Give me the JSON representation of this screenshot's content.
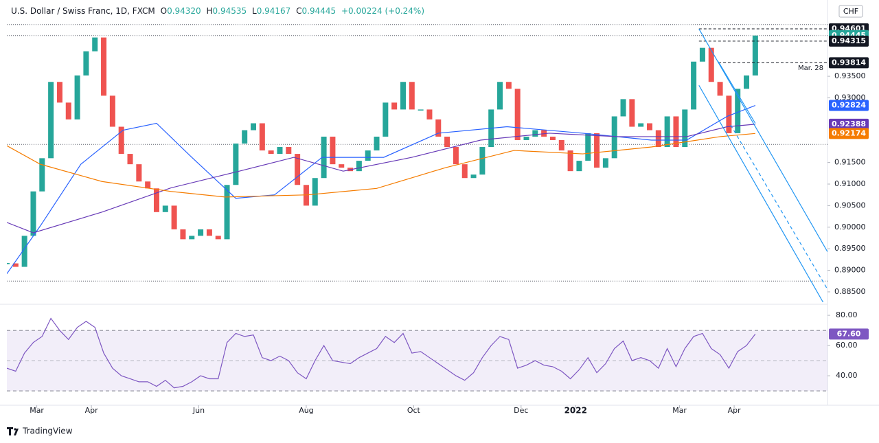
{
  "header": {
    "title": "U.S. Dollar / Swiss Franc, 1D, FXCM",
    "ohlc": [
      {
        "label": "O",
        "value": "0.94320"
      },
      {
        "label": "H",
        "value": "0.94535"
      },
      {
        "label": "L",
        "value": "0.94167"
      },
      {
        "label": "C",
        "value": "0.94445"
      }
    ],
    "change": "+0.00224 (+0.24%)",
    "currency": "CHF",
    "brand": "TradingView"
  },
  "chart_data": {
    "type": "candlestick",
    "x": [
      0,
      5,
      10,
      15,
      20,
      25,
      30,
      35,
      40,
      45,
      50,
      55,
      60,
      65,
      70,
      75,
      80,
      85,
      90,
      95,
      100,
      105,
      110,
      115,
      120,
      125,
      130,
      135,
      140,
      145,
      150,
      155,
      160,
      165,
      170,
      175,
      180,
      185,
      190,
      195,
      200,
      205,
      210,
      215,
      220,
      225,
      230,
      235,
      240,
      245,
      250,
      255,
      260,
      265,
      270,
      275,
      280,
      285,
      290,
      295,
      300,
      305,
      310,
      315,
      320,
      325,
      330,
      335,
      340,
      345,
      350,
      355,
      360,
      365,
      370,
      375,
      380,
      385,
      390,
      395,
      400,
      405,
      410,
      415,
      420,
      425
    ],
    "close": [
      0.8916,
      0.8908,
      0.898,
      0.9083,
      0.916,
      0.9337,
      0.9289,
      0.925,
      0.9352,
      0.9408,
      0.944,
      0.9305,
      0.9233,
      0.917,
      0.9146,
      0.9106,
      0.909,
      0.9035,
      0.905,
      0.8995,
      0.8972,
      0.898,
      0.8995,
      0.898,
      0.8972,
      0.9098,
      0.9194,
      0.9225,
      0.9241,
      0.9178,
      0.917,
      0.9186,
      0.917,
      0.9098,
      0.905,
      0.9114,
      0.921,
      0.9146,
      0.9138,
      0.913,
      0.9154,
      0.9178,
      0.921,
      0.9289,
      0.9273,
      0.9337,
      0.9273,
      0.9273,
      0.925,
      0.921,
      0.9186,
      0.9146,
      0.9114,
      0.9122,
      0.9186,
      0.9273,
      0.9337,
      0.9321,
      0.9202,
      0.921,
      0.9225,
      0.921,
      0.9202,
      0.9178,
      0.913,
      0.9154,
      0.9218,
      0.9138,
      0.916,
      0.9257,
      0.9297,
      0.9233,
      0.9241,
      0.9225,
      0.9186,
      0.9257,
      0.9186,
      0.9273,
      0.9384,
      0.9416,
      0.9337,
      0.9305,
      0.9218,
      0.9321,
      0.9352,
      0.94445
    ],
    "up_color": "#26a69a",
    "down_color": "#ef5350",
    "xlim": [
      0,
      466
    ],
    "xticks": [
      {
        "value": 17,
        "label": "Mar"
      },
      {
        "value": 48,
        "label": "Apr"
      },
      {
        "value": 109,
        "label": "Jun"
      },
      {
        "value": 170,
        "label": "Aug"
      },
      {
        "value": 231,
        "label": "Oct"
      },
      {
        "value": 292,
        "label": "Dec"
      },
      {
        "value": 323,
        "label": "2022"
      },
      {
        "value": 382,
        "label": "Mar"
      },
      {
        "value": 413,
        "label": "Apr"
      }
    ],
    "ylim": [
      0.8826,
      0.9519
    ],
    "yticks": [
      {
        "value": 0.935,
        "label": "0.93500"
      },
      {
        "value": 0.93,
        "label": "0.93000"
      },
      {
        "value": 0.915,
        "label": "0.91500"
      },
      {
        "value": 0.91,
        "label": "0.91000"
      },
      {
        "value": 0.905,
        "label": "0.90500"
      },
      {
        "value": 0.9,
        "label": "0.90000"
      },
      {
        "value": 0.895,
        "label": "0.89500"
      },
      {
        "value": 0.89,
        "label": "0.89000"
      },
      {
        "value": 0.885,
        "label": "0.88500"
      }
    ],
    "moving_averages": [
      {
        "color": "#2962ff",
        "x": [
          0,
          19,
          42,
          66,
          85,
          105,
          130,
          152,
          179,
          214,
          245,
          284,
          327,
          366,
          386,
          409,
          425
        ],
        "values": [
          0.8892,
          0.9003,
          0.9146,
          0.9225,
          0.9241,
          0.9162,
          0.9067,
          0.9075,
          0.9162,
          0.9162,
          0.9218,
          0.9233,
          0.9218,
          0.9202,
          0.9202,
          0.9257,
          0.92824
        ]
      },
      {
        "color": "#673ab7",
        "x": [
          0,
          15,
          54,
          93,
          132,
          163,
          191,
          230,
          269,
          308,
          347,
          386,
          409,
          425
        ],
        "values": [
          0.9011,
          0.8987,
          0.9035,
          0.9091,
          0.913,
          0.9162,
          0.913,
          0.9162,
          0.9202,
          0.9218,
          0.921,
          0.921,
          0.9233,
          0.92388
        ]
      },
      {
        "color": "#f57c00",
        "x": [
          0,
          19,
          54,
          93,
          124,
          171,
          210,
          249,
          288,
          327,
          366,
          405,
          425
        ],
        "values": [
          0.9189,
          0.9146,
          0.9106,
          0.9083,
          0.907,
          0.9075,
          0.909,
          0.9138,
          0.9178,
          0.917,
          0.9186,
          0.921,
          0.92174
        ]
      }
    ],
    "reference_lines": [
      0.947,
      0.94445,
      0.9192,
      0.8875
    ],
    "levels": [
      {
        "value": 0.94601,
        "x": 393
      },
      {
        "value": 0.94315,
        "x": 393
      },
      {
        "value": 0.93814,
        "x": 404
      }
    ],
    "trendlines": [
      {
        "x": [
          393,
          466
        ],
        "y": [
          0.946,
          0.8943
        ],
        "dashed": false
      },
      {
        "x": [
          393,
          466
        ],
        "y": [
          0.9329,
          0.8808
        ],
        "dashed": false
      },
      {
        "x": [
          404,
          425
        ],
        "y": [
          0.9384,
          0.9241
        ],
        "dashed": false
      },
      {
        "x": [
          411,
          466
        ],
        "y": [
          0.9237,
          0.8856
        ],
        "dashed": true
      }
    ],
    "annotation": "Mar. 28",
    "price_labels": [
      {
        "value": 0.94601,
        "label": "0.94601",
        "color": "#131722",
        "pane": "price"
      },
      {
        "value": 0.94445,
        "label": "0.94445",
        "color": "#26a69a",
        "pane": "price"
      },
      {
        "value": 0.94315,
        "label": "0.94315",
        "color": "#131722",
        "pane": "price"
      },
      {
        "value": 0.93814,
        "label": "0.93814",
        "color": "#131722",
        "pane": "price"
      },
      {
        "value": 0.92824,
        "label": "0.92824",
        "color": "#2962ff",
        "pane": "price"
      },
      {
        "value": 0.92388,
        "label": "0.92388",
        "color": "#673ab7",
        "pane": "price"
      },
      {
        "value": 0.92174,
        "label": "0.92174",
        "color": "#f57c00",
        "pane": "price"
      },
      {
        "value": 67.6,
        "label": "67.60",
        "color": "#7e57c2",
        "pane": "rsi"
      }
    ],
    "rsi": {
      "color": "#7e57c2",
      "values": [
        45,
        43,
        55,
        62,
        66,
        78,
        70,
        64,
        72,
        76,
        72,
        55,
        45,
        40,
        38,
        36,
        36,
        33,
        37,
        32,
        33,
        36,
        40,
        38,
        38,
        62,
        68,
        66,
        67,
        52,
        50,
        53,
        50,
        42,
        38,
        50,
        60,
        50,
        49,
        48,
        52,
        55,
        58,
        66,
        62,
        68,
        55,
        56,
        52,
        48,
        44,
        40,
        37,
        42,
        52,
        60,
        66,
        64,
        45,
        47,
        50,
        47,
        46,
        43,
        38,
        44,
        52,
        42,
        48,
        58,
        63,
        50,
        52,
        50,
        45,
        58,
        46,
        58,
        66,
        68,
        58,
        54,
        45,
        56,
        60,
        67.6
      ],
      "ylim": [
        20.5,
        86.4
      ],
      "yticks": [
        {
          "value": 80,
          "label": "80.00"
        },
        {
          "value": 60,
          "label": "60.00"
        },
        {
          "value": 40,
          "label": "40.00"
        }
      ],
      "bands": [
        30,
        50,
        70
      ]
    }
  }
}
